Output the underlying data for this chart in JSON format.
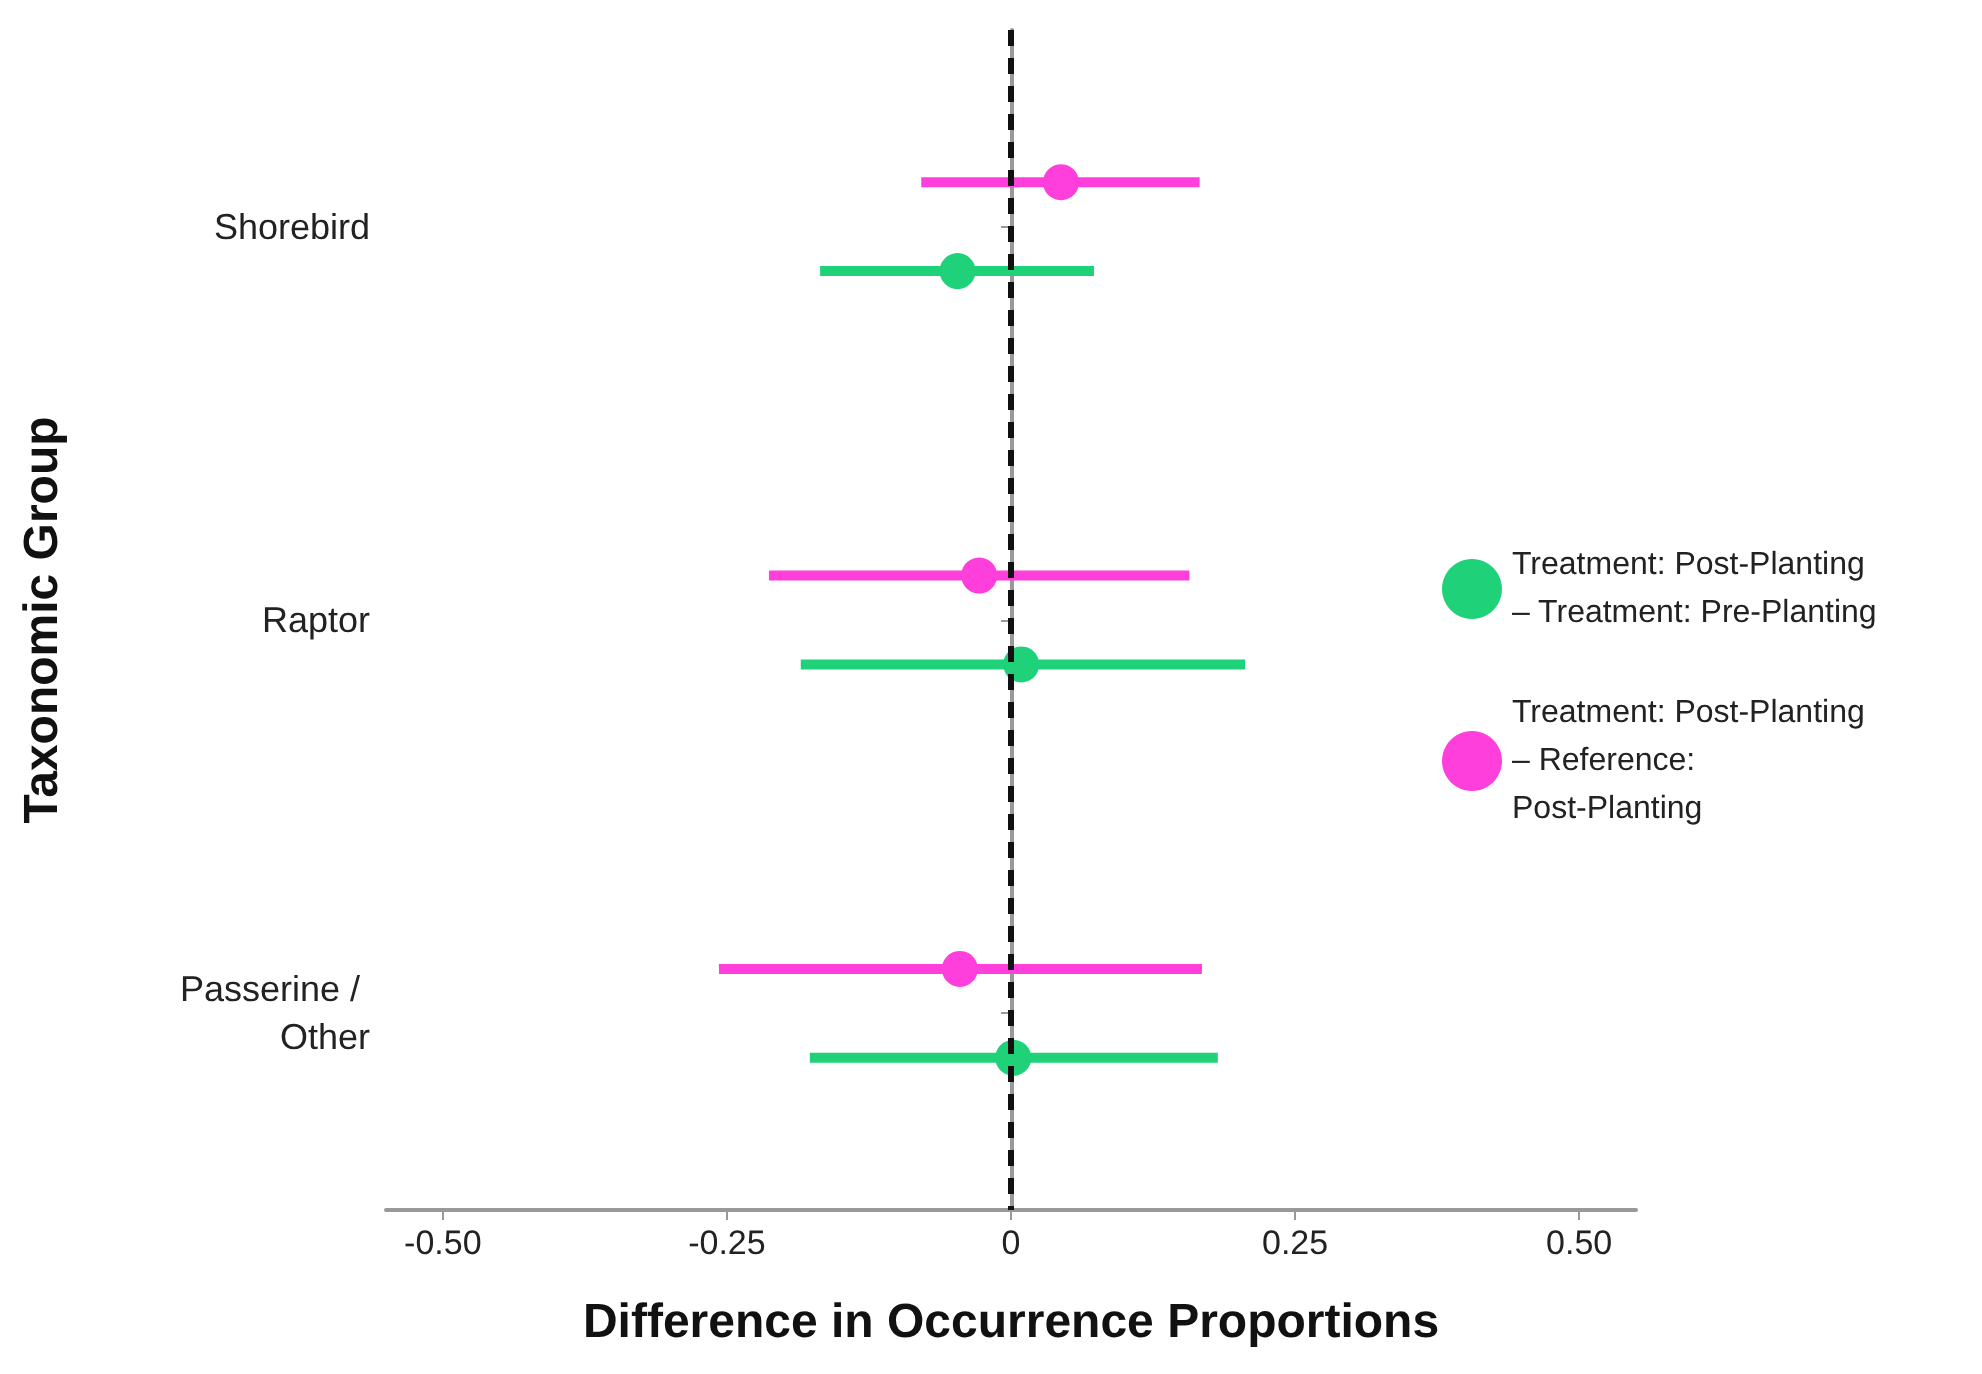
{
  "chart_data": {
    "type": "scatter",
    "orientation": "horizontal",
    "xlabel": "Difference in Occurrence Proportions",
    "ylabel": "Taxonomic Group",
    "categories": [
      "Shorebird",
      "Raptor",
      "Passerine / Other"
    ],
    "series": [
      {
        "name": "Treatment: Post-Planting – Treatment: Pre-Planting",
        "color": "#1fd27a",
        "values": [
          -0.047,
          0.009,
          0.002
        ],
        "errors": [
          [
            -0.168,
            0.073
          ],
          [
            -0.185,
            0.206
          ],
          [
            -0.177,
            0.182
          ]
        ]
      },
      {
        "name": "Treatment: Post-Planting – Reference: Post-Planting",
        "color": "#ff3fdc",
        "values": [
          0.044,
          -0.028,
          -0.045
        ],
        "errors": [
          [
            -0.079,
            0.166
          ],
          [
            -0.213,
            0.157
          ],
          [
            -0.257,
            0.168
          ]
        ]
      }
    ],
    "xlim": [
      -0.55,
      0.55
    ],
    "xticks": [
      {
        "value": -0.5,
        "label": "-0.50"
      },
      {
        "value": -0.25,
        "label": "-0.25"
      },
      0,
      {
        "value": 0.25,
        "label": "0.25"
      },
      {
        "value": 0.5,
        "label": "0.50"
      }
    ],
    "ref_lines": [
      {
        "axis": "x",
        "value": 0,
        "color": "#111111",
        "line_style": "dashed"
      }
    ],
    "marker": "circle",
    "grid": false,
    "legend": "right"
  }
}
